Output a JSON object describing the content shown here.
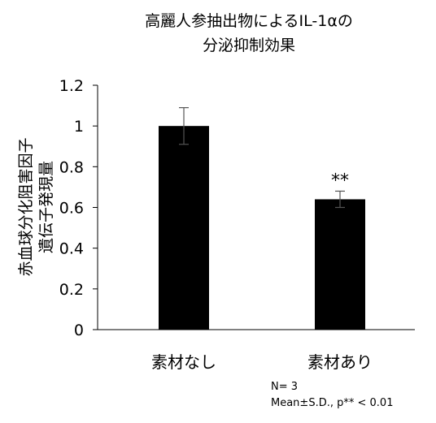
{
  "chart_data": {
    "type": "bar",
    "title_lines": [
      "高麗人参抽出物によるIL-1αの",
      "分泌抑制効果"
    ],
    "ylabel_lines": [
      "赤血球分化阻害因子",
      "遺伝子発現量"
    ],
    "xlabel": "",
    "categories": [
      "素材なし",
      "素材あり"
    ],
    "values": [
      1.0,
      0.64
    ],
    "errors": [
      0.09,
      0.04
    ],
    "significance": [
      "",
      "**"
    ],
    "ylim": [
      0,
      1.2
    ],
    "yticks": [
      "0",
      "0.2",
      "0.4",
      "0.6",
      "0.8",
      "1",
      "1.2"
    ],
    "bar_color": "#000000",
    "grid": false,
    "legend": "none"
  },
  "notes": {
    "n": "N= 3",
    "stats": "Mean±S.D., p** < 0.01"
  }
}
